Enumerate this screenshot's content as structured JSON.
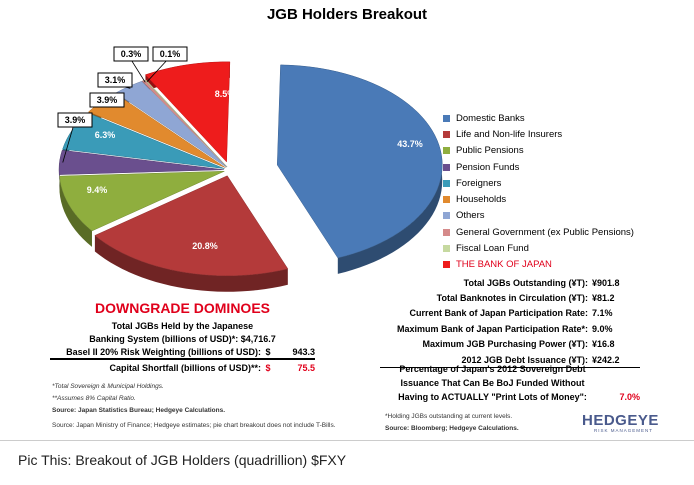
{
  "chart_data": {
    "type": "pie",
    "title": "JGB Holders Breakout",
    "slices": [
      {
        "label": "Domestic Banks",
        "value": 43.7,
        "display": "43.7%",
        "color": "#4a7ab7"
      },
      {
        "label": "Life and Non-life Insurers",
        "value": 20.8,
        "display": "20.8%",
        "color": "#b43a3a"
      },
      {
        "label": "Public Pensions",
        "value": 9.4,
        "display": "9.4%",
        "color": "#8fae3e"
      },
      {
        "label": "Pension Funds",
        "value": 3.9,
        "display": "3.9%",
        "color": "#6a4f8e"
      },
      {
        "label": "Foreigners",
        "value": 6.3,
        "display": "6.3%",
        "color": "#3a9bb8"
      },
      {
        "label": "Households",
        "value": 3.9,
        "display": "3.9%",
        "color": "#e18a2e"
      },
      {
        "label": "Others",
        "value": 3.1,
        "display": "3.1%",
        "color": "#8fa6d4"
      },
      {
        "label": "General Government (ex Public Pensions)",
        "value": 0.3,
        "display": "0.3%",
        "color": "#d58a8a"
      },
      {
        "label": "Fiscal Loan Fund",
        "value": 0.1,
        "display": "0.1%",
        "color": "#c6d9a0"
      },
      {
        "label": "THE BANK OF JAPAN",
        "value": 8.5,
        "display": "8.5%",
        "color": "#ee1c1c"
      }
    ]
  },
  "legend_red_label": "THE BANK OF JAPAN",
  "stats": [
    {
      "label": "Total JGBs Outstanding (¥T):",
      "value": "¥901.8"
    },
    {
      "label": "Total Banknotes in Circulation (¥T):",
      "value": "¥81.2"
    },
    {
      "label": "Current Bank of Japan Participation Rate:",
      "value": "7.1%"
    },
    {
      "label": "Maximum Bank of Japan Participation Rate*:",
      "value": "9.0%"
    },
    {
      "label": "Maximum JGB Purchasing Power (¥T):",
      "value": "¥16.8"
    },
    {
      "label": "2012 JGB Debt Issuance (¥T):",
      "value": "¥242.2"
    }
  ],
  "pct": {
    "line1": "Percentage of Japan's 2012 Sovereign Debt",
    "line2": "Issuance That Can Be BoJ Funded Without",
    "line3": "Having to ACTUALLY \"Print Lots of Money\":",
    "value": "7.0%"
  },
  "stats_footnote1": "*Holding JGBs outstanding at current levels.",
  "stats_footnote2": "Source: Bloomberg; Hedgeye Calculations.",
  "downgrade": {
    "title": "DOWNGRADE DOMINOES",
    "line1": "Total JGBs Held by the Japanese",
    "line2_label": "Banking System (billions of USD)*:",
    "line2_value": "$4,716.7",
    "line3_label": "Basel II 20% Risk Weighting (billions of USD):",
    "line3_sym": "$",
    "line3_value": "943.3",
    "line4_label": "Capital Shortfall (billions of USD)**:",
    "line4_sym": "$",
    "line4_value": "75.5",
    "fn1": "*Total Sovereign & Municipal Holdings.",
    "fn2": "**Assumes 8% Capital Ratio.",
    "fn3": "Source: Japan Statistics Bureau; Hedgeye Calculations."
  },
  "source_note": "Source: Japan Ministry of Finance; Hedgeye estimates; pie chart breakout does not include T-Bills.",
  "logo": "HEDGEYE",
  "logo_sub": "RISK MANAGEMENT",
  "caption": "Pic This: Breakout of JGB Holders (quadrillion) $FXY"
}
